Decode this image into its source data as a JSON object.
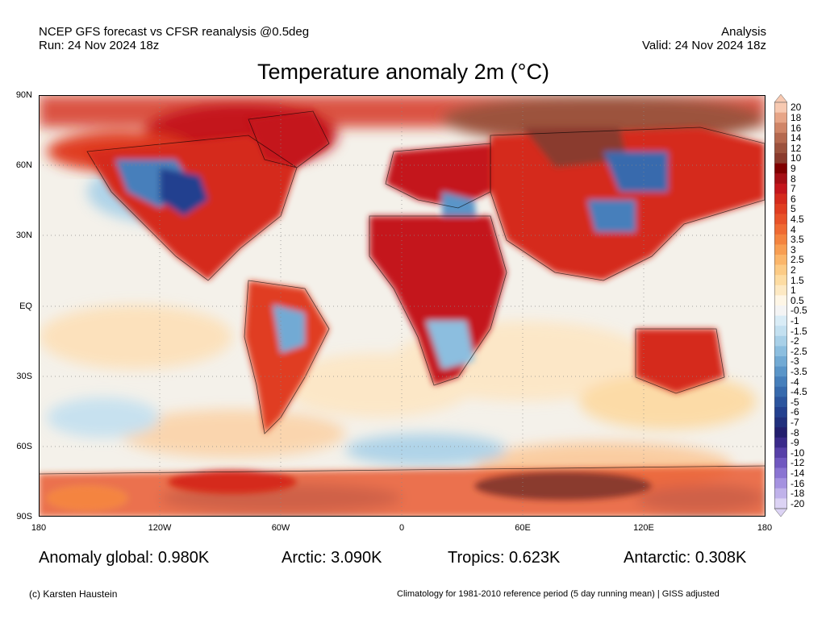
{
  "header": {
    "line1_left": "NCEP GFS forecast vs CFSR reanalysis @0.5deg",
    "line2_left": "Run: 24 Nov 2024 18z",
    "line1_right": "Analysis",
    "line2_right": "Valid: 24 Nov 2024 18z"
  },
  "title": "Temperature anomaly 2m (°C)",
  "map": {
    "lat_labels": [
      "90N",
      "60N",
      "30N",
      "EQ",
      "30S",
      "60S",
      "90S"
    ],
    "lon_labels": [
      "180",
      "120W",
      "60W",
      "0",
      "60E",
      "120E",
      "180"
    ]
  },
  "colorbar": {
    "labels": [
      "20",
      "18",
      "16",
      "14",
      "12",
      "10",
      "9",
      "8",
      "7",
      "6",
      "5",
      "4.5",
      "4",
      "3.5",
      "3",
      "2.5",
      "2",
      "1.5",
      "1",
      "0.5",
      "-0.5",
      "-1",
      "-1.5",
      "-2",
      "-2.5",
      "-3",
      "-3.5",
      "-4",
      "-4.5",
      "-5",
      "-6",
      "-7",
      "-8",
      "-9",
      "-10",
      "-12",
      "-14",
      "-16",
      "-18",
      "-20"
    ],
    "colors": [
      "#f7c9b1",
      "#e7a587",
      "#d08567",
      "#b5694f",
      "#9c523d",
      "#8a3b2d",
      "#800000",
      "#a50f15",
      "#c4161c",
      "#d52a1c",
      "#e03d20",
      "#e85228",
      "#ef6a32",
      "#f4843f",
      "#f89e52",
      "#fbb66a",
      "#fccb85",
      "#fddca2",
      "#fde9c3",
      "#fef6e6",
      "#f4f4f4",
      "#d9ecf6",
      "#c3e0f0",
      "#a8d0e8",
      "#8cbedf",
      "#72aad4",
      "#5a95c8",
      "#467fbb",
      "#376aad",
      "#2c559e",
      "#24418f",
      "#21307d",
      "#231f6e",
      "#3a2a8a",
      "#5740a8",
      "#7058c0",
      "#8a74d2",
      "#a592e0",
      "#c0b2ea",
      "#dcd3f4"
    ]
  },
  "stats": {
    "global": "Anomaly global: 0.980K",
    "arctic": "Arctic: 3.090K",
    "tropics": "Tropics: 0.623K",
    "antarctic": "Antarctic: 0.308K"
  },
  "footer": {
    "left": "(c) Karsten Haustein",
    "right": "Climatology for 1981-2010 reference period (5 day running mean) | GISS adjusted"
  }
}
